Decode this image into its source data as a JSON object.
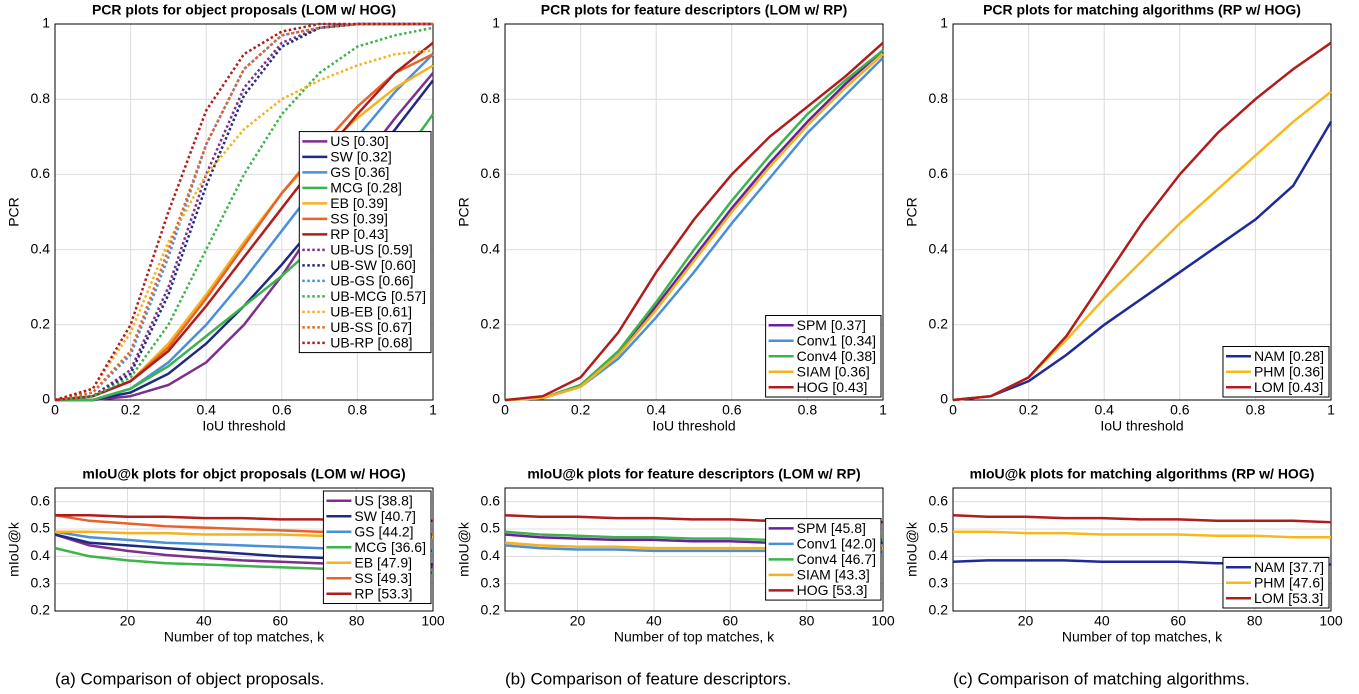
{
  "chart_data": [
    {
      "type": "line",
      "title": "PCR plots for object proposals (LOM w/ HOG)",
      "xlabel": "IoU threshold",
      "ylabel": "PCR",
      "x": [
        0,
        0.1,
        0.2,
        0.3,
        0.4,
        0.5,
        0.6,
        0.7,
        0.8,
        0.9,
        1
      ],
      "xlim": [
        0,
        1
      ],
      "xticks": [
        0,
        0.2,
        0.4,
        0.6,
        0.8,
        1
      ],
      "ylim": [
        0,
        1
      ],
      "yticks": [
        0,
        0.2,
        0.4,
        0.6,
        0.8,
        1
      ],
      "grid": true,
      "legend": "east",
      "series": [
        {
          "name": "US [0.30]",
          "color": "#7e2f8e",
          "values": [
            0,
            0,
            0.01,
            0.04,
            0.1,
            0.2,
            0.33,
            0.48,
            0.62,
            0.75,
            0.87
          ]
        },
        {
          "name": "SW [0.32]",
          "color": "#1f2a80",
          "values": [
            0,
            0,
            0.02,
            0.07,
            0.15,
            0.25,
            0.36,
            0.48,
            0.6,
            0.72,
            0.85
          ]
        },
        {
          "name": "GS [0.36]",
          "color": "#4a90d9",
          "values": [
            0,
            0,
            0.03,
            0.1,
            0.2,
            0.32,
            0.45,
            0.58,
            0.7,
            0.82,
            0.92
          ]
        },
        {
          "name": "MCG [0.28]",
          "color": "#3cb44b",
          "values": [
            0,
            0,
            0.03,
            0.09,
            0.17,
            0.25,
            0.33,
            0.42,
            0.52,
            0.62,
            0.76
          ]
        },
        {
          "name": "EB [0.39]",
          "color": "#f5b120",
          "values": [
            0,
            0.01,
            0.05,
            0.15,
            0.28,
            0.42,
            0.55,
            0.66,
            0.75,
            0.83,
            0.89
          ]
        },
        {
          "name": "SS [0.39]",
          "color": "#e8632a",
          "values": [
            0,
            0.01,
            0.05,
            0.14,
            0.27,
            0.41,
            0.55,
            0.67,
            0.78,
            0.87,
            0.92
          ]
        },
        {
          "name": "RP [0.43]",
          "color": "#b01c1c",
          "values": [
            0,
            0.01,
            0.05,
            0.13,
            0.25,
            0.38,
            0.51,
            0.64,
            0.76,
            0.87,
            0.95
          ]
        },
        {
          "name": "UB-US [0.59]",
          "color": "#7e2f8e",
          "style": "dotted",
          "values": [
            0,
            0.01,
            0.08,
            0.3,
            0.6,
            0.83,
            0.95,
            0.99,
            1,
            1,
            1
          ]
        },
        {
          "name": "UB-SW [0.60]",
          "color": "#1f2a80",
          "style": "dotted",
          "values": [
            0,
            0.01,
            0.07,
            0.28,
            0.57,
            0.81,
            0.94,
            0.99,
            1,
            1,
            1
          ]
        },
        {
          "name": "UB-GS [0.66]",
          "color": "#4a90d9",
          "style": "dotted",
          "values": [
            0,
            0.02,
            0.12,
            0.38,
            0.68,
            0.88,
            0.97,
            0.99,
            1,
            1,
            1
          ]
        },
        {
          "name": "UB-MCG [0.57]",
          "color": "#3cb44b",
          "style": "dotted",
          "values": [
            0,
            0.01,
            0.06,
            0.2,
            0.4,
            0.6,
            0.76,
            0.87,
            0.94,
            0.97,
            0.99
          ]
        },
        {
          "name": "UB-EB [0.61]",
          "color": "#f5b120",
          "style": "dotted",
          "values": [
            0,
            0.03,
            0.18,
            0.42,
            0.6,
            0.72,
            0.8,
            0.85,
            0.89,
            0.92,
            0.93
          ]
        },
        {
          "name": "UB-SS [0.67]",
          "color": "#e8632a",
          "style": "dotted",
          "values": [
            0,
            0.02,
            0.13,
            0.4,
            0.68,
            0.88,
            0.97,
            0.99,
            1,
            1,
            1
          ]
        },
        {
          "name": "UB-RP [0.68]",
          "color": "#b01c1c",
          "style": "dotted",
          "values": [
            0,
            0.03,
            0.2,
            0.5,
            0.77,
            0.92,
            0.98,
            1,
            1,
            1,
            1
          ]
        }
      ]
    },
    {
      "type": "line",
      "title": "PCR plots for feature descriptors (LOM w/ RP)",
      "xlabel": "IoU threshold",
      "ylabel": "PCR",
      "x": [
        0,
        0.1,
        0.2,
        0.3,
        0.4,
        0.5,
        0.6,
        0.7,
        0.8,
        0.9,
        1
      ],
      "xlim": [
        0,
        1
      ],
      "xticks": [
        0,
        0.2,
        0.4,
        0.6,
        0.8,
        1
      ],
      "ylim": [
        0,
        1
      ],
      "yticks": [
        0,
        0.2,
        0.4,
        0.6,
        0.8,
        1
      ],
      "grid": true,
      "legend": "southeast",
      "series": [
        {
          "name": "SPM [0.37]",
          "color": "#6a1fa0",
          "values": [
            0,
            0.005,
            0.04,
            0.12,
            0.25,
            0.38,
            0.51,
            0.63,
            0.74,
            0.84,
            0.93
          ]
        },
        {
          "name": "Conv1 [0.34]",
          "color": "#4a90d9",
          "values": [
            0,
            0.005,
            0.035,
            0.11,
            0.22,
            0.34,
            0.47,
            0.59,
            0.71,
            0.81,
            0.91
          ]
        },
        {
          "name": "Conv4 [0.38]",
          "color": "#3cb44b",
          "values": [
            0,
            0.005,
            0.04,
            0.13,
            0.26,
            0.4,
            0.53,
            0.65,
            0.76,
            0.85,
            0.93
          ]
        },
        {
          "name": "SIAM [0.36]",
          "color": "#f5b120",
          "values": [
            0,
            0.005,
            0.035,
            0.12,
            0.24,
            0.37,
            0.5,
            0.62,
            0.73,
            0.83,
            0.92
          ]
        },
        {
          "name": "HOG [0.43]",
          "color": "#b01c1c",
          "values": [
            0,
            0.01,
            0.06,
            0.18,
            0.34,
            0.48,
            0.6,
            0.7,
            0.78,
            0.86,
            0.95
          ]
        }
      ]
    },
    {
      "type": "line",
      "title": "PCR plots for matching algorithms (RP w/ HOG)",
      "xlabel": "IoU threshold",
      "ylabel": "PCR",
      "x": [
        0,
        0.1,
        0.2,
        0.3,
        0.4,
        0.5,
        0.6,
        0.7,
        0.8,
        0.9,
        1
      ],
      "xlim": [
        0,
        1
      ],
      "xticks": [
        0,
        0.2,
        0.4,
        0.6,
        0.8,
        1
      ],
      "ylim": [
        0,
        1
      ],
      "yticks": [
        0,
        0.2,
        0.4,
        0.6,
        0.8,
        1
      ],
      "grid": true,
      "legend": "southeast",
      "series": [
        {
          "name": "NAM [0.28]",
          "color": "#1f2a9a",
          "values": [
            0,
            0.01,
            0.05,
            0.12,
            0.2,
            0.27,
            0.34,
            0.41,
            0.48,
            0.57,
            0.74
          ]
        },
        {
          "name": "PHM [0.36]",
          "color": "#f9b81a",
          "values": [
            0,
            0.01,
            0.06,
            0.16,
            0.27,
            0.37,
            0.47,
            0.56,
            0.65,
            0.74,
            0.82
          ]
        },
        {
          "name": "LOM [0.43]",
          "color": "#b01c1c",
          "values": [
            0,
            0.01,
            0.06,
            0.17,
            0.32,
            0.47,
            0.6,
            0.71,
            0.8,
            0.88,
            0.95
          ]
        }
      ]
    },
    {
      "type": "line",
      "title": "mIoU@k plots for objct proposals (LOM w/ HOG)",
      "xlabel": "Number of top matches, k",
      "ylabel": "mIoU@k",
      "x": [
        1,
        10,
        20,
        30,
        40,
        50,
        60,
        70,
        80,
        90,
        100
      ],
      "xlim": [
        1,
        100
      ],
      "xticks": [
        20,
        40,
        60,
        80,
        100
      ],
      "ylim": [
        0.2,
        0.65
      ],
      "yticks": [
        0.2,
        0.3,
        0.4,
        0.5,
        0.6
      ],
      "grid": true,
      "legend": "northeast",
      "series": [
        {
          "name": "US [38.8]",
          "color": "#7e2f8e",
          "values": [
            0.48,
            0.44,
            0.42,
            0.405,
            0.395,
            0.385,
            0.38,
            0.375,
            0.37,
            0.365,
            0.36
          ]
        },
        {
          "name": "SW [40.7]",
          "color": "#1f2a80",
          "values": [
            0.48,
            0.45,
            0.44,
            0.43,
            0.42,
            0.41,
            0.4,
            0.395,
            0.39,
            0.38,
            0.37
          ]
        },
        {
          "name": "GS [44.2]",
          "color": "#4a90d9",
          "values": [
            0.49,
            0.47,
            0.46,
            0.45,
            0.445,
            0.44,
            0.435,
            0.43,
            0.425,
            0.42,
            0.42
          ]
        },
        {
          "name": "MCG [36.6]",
          "color": "#3cb44b",
          "values": [
            0.43,
            0.4,
            0.385,
            0.375,
            0.37,
            0.365,
            0.36,
            0.355,
            0.35,
            0.345,
            0.34
          ]
        },
        {
          "name": "EB [47.9]",
          "color": "#f5b120",
          "values": [
            0.49,
            0.49,
            0.485,
            0.485,
            0.48,
            0.48,
            0.48,
            0.475,
            0.475,
            0.47,
            0.47
          ]
        },
        {
          "name": "SS [49.3]",
          "color": "#e8632a",
          "values": [
            0.55,
            0.53,
            0.52,
            0.51,
            0.505,
            0.5,
            0.495,
            0.49,
            0.49,
            0.485,
            0.48
          ]
        },
        {
          "name": "RP [53.3]",
          "color": "#b01c1c",
          "values": [
            0.55,
            0.55,
            0.545,
            0.545,
            0.54,
            0.54,
            0.535,
            0.535,
            0.53,
            0.53,
            0.53
          ]
        }
      ]
    },
    {
      "type": "line",
      "title": "mIoU@k plots for feature descriptors (LOM w/ RP)",
      "xlabel": "Number of top matches, k",
      "ylabel": "mIoU@k",
      "x": [
        1,
        10,
        20,
        30,
        40,
        50,
        60,
        70,
        80,
        90,
        100
      ],
      "xlim": [
        1,
        100
      ],
      "xticks": [
        20,
        40,
        60,
        80,
        100
      ],
      "ylim": [
        0.2,
        0.65
      ],
      "yticks": [
        0.2,
        0.3,
        0.4,
        0.5,
        0.6
      ],
      "grid": true,
      "legend": "east",
      "series": [
        {
          "name": "SPM [45.8]",
          "color": "#6a1fa0",
          "values": [
            0.48,
            0.47,
            0.465,
            0.46,
            0.46,
            0.455,
            0.455,
            0.45,
            0.45,
            0.45,
            0.45
          ]
        },
        {
          "name": "Conv1 [42.0]",
          "color": "#4a90d9",
          "values": [
            0.44,
            0.43,
            0.425,
            0.425,
            0.42,
            0.42,
            0.42,
            0.42,
            0.415,
            0.415,
            0.415
          ]
        },
        {
          "name": "Conv4 [46.7]",
          "color": "#3cb44b",
          "values": [
            0.49,
            0.48,
            0.475,
            0.47,
            0.47,
            0.465,
            0.465,
            0.46,
            0.46,
            0.46,
            0.46
          ]
        },
        {
          "name": "SIAM [43.3]",
          "color": "#f5b120",
          "values": [
            0.45,
            0.44,
            0.435,
            0.435,
            0.43,
            0.43,
            0.43,
            0.43,
            0.43,
            0.43,
            0.43
          ]
        },
        {
          "name": "HOG [53.3]",
          "color": "#b01c1c",
          "values": [
            0.55,
            0.545,
            0.545,
            0.54,
            0.54,
            0.535,
            0.535,
            0.53,
            0.53,
            0.53,
            0.525
          ]
        }
      ]
    },
    {
      "type": "line",
      "title": "mIoU@k plots for matching algorithms (RP w/ HOG)",
      "xlabel": "Number of top matches, k",
      "ylabel": "mIoU@k",
      "x": [
        1,
        10,
        20,
        30,
        40,
        50,
        60,
        70,
        80,
        90,
        100
      ],
      "xlim": [
        1,
        100
      ],
      "xticks": [
        20,
        40,
        60,
        80,
        100
      ],
      "ylim": [
        0.2,
        0.65
      ],
      "yticks": [
        0.2,
        0.3,
        0.4,
        0.5,
        0.6
      ],
      "grid": true,
      "legend": "southeast",
      "series": [
        {
          "name": "NAM [37.7]",
          "color": "#1f2a9a",
          "values": [
            0.38,
            0.385,
            0.385,
            0.385,
            0.38,
            0.38,
            0.38,
            0.375,
            0.375,
            0.37,
            0.37
          ]
        },
        {
          "name": "PHM [47.6]",
          "color": "#f9b81a",
          "values": [
            0.49,
            0.49,
            0.485,
            0.485,
            0.48,
            0.48,
            0.48,
            0.475,
            0.475,
            0.47,
            0.47
          ]
        },
        {
          "name": "LOM [53.3]",
          "color": "#b01c1c",
          "values": [
            0.55,
            0.545,
            0.545,
            0.54,
            0.54,
            0.535,
            0.535,
            0.53,
            0.53,
            0.53,
            0.525
          ]
        }
      ]
    }
  ],
  "captions": [
    "(a) Comparison of object proposals.",
    "(b) Comparison of feature descriptors.",
    "(c) Comparison of matching algorithms."
  ]
}
